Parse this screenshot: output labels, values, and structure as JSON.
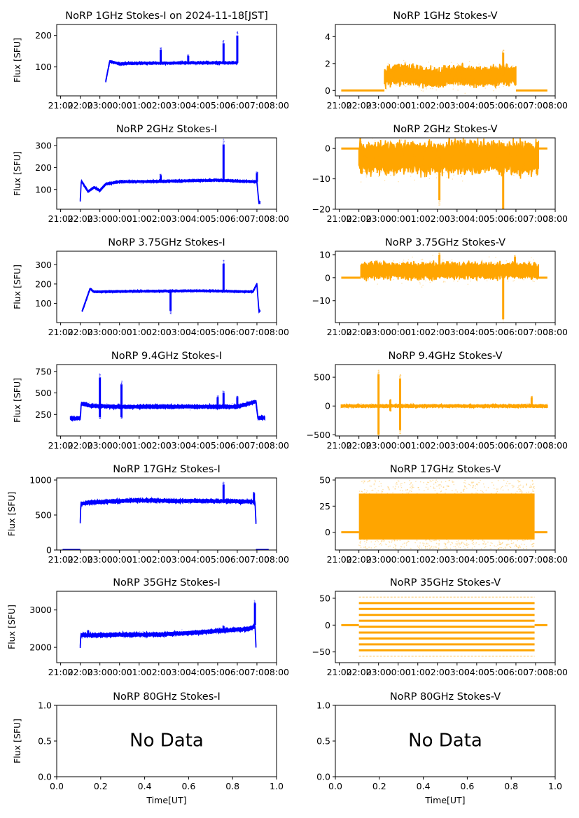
{
  "figure": {
    "date_title_suffix": " on 2024-11-18[JST]",
    "ylabel": "Flux [SFU]",
    "xlabel_bottom": "Time[UT]",
    "colors": {
      "stokes_i": "#0000ff",
      "stokes_v": "#ffa500",
      "axes": "#000000"
    }
  },
  "chart_data": [
    {
      "id": "i1",
      "type": "scatter",
      "title": "NoRP 1GHz Stokes-I on 2024-11-18[JST]",
      "ylabel": "Flux [SFU]",
      "color": "#0000ff",
      "stokes": "I",
      "xlim": [
        -3.2,
        8.0
      ],
      "ylim": [
        8,
        235
      ],
      "yticks": [
        100,
        200
      ],
      "xticklabels": [
        "21:00",
        "22:00",
        "23:00",
        "00:00",
        "01:00",
        "02:00",
        "03:00",
        "04:00",
        "05:00",
        "06:00",
        "07:00",
        "08:00"
      ],
      "baseline": [
        [
          -0.7,
          55
        ],
        [
          -0.5,
          118
        ],
        [
          0,
          110
        ],
        [
          1,
          112
        ],
        [
          2,
          112
        ],
        [
          4,
          113
        ],
        [
          6,
          113
        ],
        [
          6.0,
          115
        ]
      ],
      "spikes": [
        [
          2.1,
          155
        ],
        [
          3.5,
          135
        ],
        [
          5.3,
          175
        ],
        [
          6.0,
          200
        ]
      ],
      "noise": 2,
      "segment": [
        -0.7,
        6.0
      ]
    },
    {
      "id": "v1",
      "type": "scatter",
      "title": "NoRP 1GHz Stokes-V",
      "ylabel": "",
      "color": "#ffa500",
      "stokes": "V",
      "xlim": [
        -3.2,
        8.0
      ],
      "ylim": [
        -0.4,
        4.9
      ],
      "yticks": [
        0,
        2,
        4
      ],
      "xticklabels": [
        "21:00",
        "22:00",
        "23:00",
        "00:00",
        "01:00",
        "02:00",
        "03:00",
        "04:00",
        "05:00",
        "06:00",
        "07:00",
        "08:00"
      ],
      "baseline": [
        [
          -0.7,
          1.0
        ],
        [
          0,
          1.2
        ],
        [
          1,
          1.1
        ],
        [
          2,
          0.9
        ],
        [
          3,
          1.2
        ],
        [
          4,
          1.0
        ],
        [
          5,
          1.1
        ],
        [
          6,
          1.2
        ]
      ],
      "spikes": [
        [
          5.35,
          2.8
        ]
      ],
      "noise": 0.4,
      "segment": [
        -0.7,
        6.0
      ],
      "zero_segments": [
        [
          -2.9,
          -0.7
        ],
        [
          6.0,
          7.6
        ]
      ]
    },
    {
      "id": "i2",
      "type": "scatter",
      "title": "NoRP 2GHz Stokes-I",
      "ylabel": "Flux [SFU]",
      "color": "#0000ff",
      "stokes": "I",
      "xlim": [
        -3.2,
        8.0
      ],
      "ylim": [
        10,
        335
      ],
      "yticks": [
        100,
        200,
        300
      ],
      "xticklabels": [
        "21:00",
        "22:00",
        "23:00",
        "00:00",
        "01:00",
        "02:00",
        "03:00",
        "04:00",
        "05:00",
        "06:00",
        "07:00",
        "08:00"
      ],
      "baseline": [
        [
          -2,
          50
        ],
        [
          -1.95,
          140
        ],
        [
          -1.6,
          90
        ],
        [
          -1.3,
          110
        ],
        [
          -1.0,
          95
        ],
        [
          -0.7,
          125
        ],
        [
          0,
          135
        ],
        [
          2,
          137
        ],
        [
          5,
          142
        ],
        [
          7,
          135
        ],
        [
          7.1,
          40
        ]
      ],
      "spikes": [
        [
          2.1,
          165
        ],
        [
          5.3,
          305
        ],
        [
          7.0,
          175
        ]
      ],
      "noise": 3,
      "segment": [
        -2.0,
        7.15
      ]
    },
    {
      "id": "v2",
      "type": "scatter",
      "title": "NoRP 2GHz Stokes-V",
      "ylabel": "",
      "color": "#ffa500",
      "stokes": "V",
      "xlim": [
        -3.2,
        8.0
      ],
      "ylim": [
        -20,
        3.5
      ],
      "yticks": [
        0,
        -10,
        -20
      ],
      "xticklabels": [
        "21:00",
        "22:00",
        "23:00",
        "00:00",
        "01:00",
        "02:00",
        "03:00",
        "04:00",
        "05:00",
        "06:00",
        "07:00",
        "08:00"
      ],
      "baseline": [
        [
          -2,
          -3
        ],
        [
          7.1,
          -3
        ]
      ],
      "spikes": [
        [
          -1.6,
          -8
        ],
        [
          2.1,
          -17
        ],
        [
          5.35,
          -20
        ]
      ],
      "noise": 3,
      "segment": [
        -2.0,
        7.15
      ],
      "zero_segments": [
        [
          -2.9,
          -2.0
        ],
        [
          7.15,
          7.6
        ]
      ]
    },
    {
      "id": "i3",
      "type": "scatter",
      "title": "NoRP 3.75GHz Stokes-I",
      "ylabel": "Flux [SFU]",
      "color": "#0000ff",
      "stokes": "I",
      "xlim": [
        -3.2,
        8.0
      ],
      "ylim": [
        0,
        370
      ],
      "yticks": [
        100,
        200,
        300
      ],
      "xticklabels": [
        "21:00",
        "22:00",
        "23:00",
        "00:00",
        "01:00",
        "02:00",
        "03:00",
        "04:00",
        "05:00",
        "06:00",
        "07:00",
        "08:00"
      ],
      "baseline": [
        [
          -1.9,
          60
        ],
        [
          -1.5,
          175
        ],
        [
          -1.3,
          160
        ],
        [
          4,
          165
        ],
        [
          6.8,
          160
        ],
        [
          7.0,
          200
        ],
        [
          7.1,
          60
        ]
      ],
      "spikes": [
        [
          2.6,
          60
        ],
        [
          5.3,
          305
        ]
      ],
      "noise": 3,
      "segment": [
        -1.9,
        7.15
      ]
    },
    {
      "id": "v3",
      "type": "scatter",
      "title": "NoRP 3.75GHz Stokes-V",
      "ylabel": "",
      "color": "#ffa500",
      "stokes": "V",
      "xlim": [
        -3.2,
        8.0
      ],
      "ylim": [
        -19.5,
        11.5
      ],
      "yticks": [
        10,
        0,
        -10
      ],
      "xticklabels": [
        "21:00",
        "22:00",
        "23:00",
        "00:00",
        "01:00",
        "02:00",
        "03:00",
        "04:00",
        "05:00",
        "06:00",
        "07:00",
        "08:00"
      ],
      "baseline": [
        [
          -1.9,
          3
        ],
        [
          7.1,
          3
        ]
      ],
      "spikes": [
        [
          2.1,
          10
        ],
        [
          5.35,
          -18
        ],
        [
          5.95,
          9
        ]
      ],
      "noise": 2,
      "segment": [
        -1.9,
        7.15
      ],
      "zero_segments": [
        [
          -2.9,
          -1.9
        ],
        [
          7.15,
          7.6
        ]
      ]
    },
    {
      "id": "i4",
      "type": "scatter",
      "title": "NoRP 9.4GHz Stokes-I",
      "ylabel": "Flux [SFU]",
      "color": "#0000ff",
      "stokes": "I",
      "xlim": [
        -3.2,
        8.0
      ],
      "ylim": [
        0,
        830
      ],
      "yticks": [
        250,
        500,
        750
      ],
      "xticklabels": [
        "21:00",
        "22:00",
        "23:00",
        "00:00",
        "01:00",
        "02:00",
        "03:00",
        "04:00",
        "05:00",
        "06:00",
        "07:00",
        "08:00"
      ],
      "baseline": [
        [
          -2.5,
          205
        ],
        [
          -2.0,
          205
        ],
        [
          -1.95,
          380
        ],
        [
          -1.5,
          350
        ],
        [
          0,
          340
        ],
        [
          6,
          340
        ],
        [
          6.95,
          400
        ],
        [
          7.05,
          210
        ],
        [
          7.35,
          210
        ]
      ],
      "spikes": [
        [
          -1.0,
          680
        ],
        [
          -1.0,
          220
        ],
        [
          0.1,
          600
        ],
        [
          0.1,
          220
        ],
        [
          5.3,
          500
        ],
        [
          5.0,
          450
        ],
        [
          6.0,
          450
        ]
      ],
      "noise": 12,
      "segment": [
        -2.5,
        7.4
      ]
    },
    {
      "id": "v4",
      "type": "scatter",
      "title": "NoRP 9.4GHz Stokes-V",
      "ylabel": "",
      "color": "#ffa500",
      "stokes": "V",
      "xlim": [
        -3.2,
        8.0
      ],
      "ylim": [
        -520,
        720
      ],
      "yticks": [
        500,
        0,
        -500
      ],
      "xticklabels": [
        "21:00",
        "22:00",
        "23:00",
        "00:00",
        "01:00",
        "02:00",
        "03:00",
        "04:00",
        "05:00",
        "06:00",
        "07:00",
        "08:00"
      ],
      "baseline": [
        [
          -2.9,
          0
        ],
        [
          7.6,
          0
        ]
      ],
      "spikes": [
        [
          -1.0,
          550
        ],
        [
          -1.0,
          -500
        ],
        [
          0.1,
          480
        ],
        [
          0.1,
          -420
        ],
        [
          -0.4,
          100
        ],
        [
          -0.4,
          -80
        ],
        [
          6.8,
          150
        ]
      ],
      "noise": 15,
      "segment": [
        -2.9,
        7.6
      ]
    },
    {
      "id": "i5",
      "type": "scatter",
      "title": "NoRP 17GHz Stokes-I",
      "ylabel": "Flux [SFU]",
      "color": "#0000ff",
      "stokes": "I",
      "xlim": [
        -3.2,
        8.0
      ],
      "ylim": [
        0,
        1030
      ],
      "yticks": [
        0,
        500,
        1000
      ],
      "xticklabels": [
        "21:00",
        "22:00",
        "23:00",
        "00:00",
        "01:00",
        "02:00",
        "03:00",
        "04:00",
        "05:00",
        "06:00",
        "07:00",
        "08:00"
      ],
      "baseline": [
        [
          -2.0,
          400
        ],
        [
          -1.97,
          660
        ],
        [
          -1.5,
          680
        ],
        [
          0,
          700
        ],
        [
          1,
          710
        ],
        [
          3,
          700
        ],
        [
          5,
          700
        ],
        [
          6.9,
          690
        ],
        [
          6.95,
          400
        ]
      ],
      "spikes": [
        [
          5.3,
          935
        ],
        [
          6.85,
          810
        ]
      ],
      "noise": 15,
      "segment": [
        -2.0,
        6.95
      ],
      "zero_segments": [
        [
          -2.9,
          -2.0
        ],
        [
          6.95,
          7.6
        ]
      ]
    },
    {
      "id": "v5",
      "type": "scatter",
      "title": "NoRP 17GHz Stokes-V",
      "ylabel": "",
      "color": "#ffa500",
      "stokes": "V",
      "xlim": [
        -3.2,
        8.0
      ],
      "ylim": [
        -17,
        52
      ],
      "yticks": [
        50,
        25,
        0
      ],
      "xticklabels": [
        "21:00",
        "22:00",
        "23:00",
        "00:00",
        "01:00",
        "02:00",
        "03:00",
        "04:00",
        "05:00",
        "06:00",
        "07:00",
        "08:00"
      ],
      "band": [
        -7,
        37
      ],
      "noise": 10,
      "segment": [
        -2.0,
        6.95
      ],
      "zero_segments": [
        [
          -2.9,
          -2.0
        ],
        [
          6.95,
          7.6
        ]
      ]
    },
    {
      "id": "i6",
      "type": "scatter",
      "title": "NoRP 35GHz Stokes-I",
      "ylabel": "Flux [SFU]",
      "color": "#0000ff",
      "stokes": "I",
      "xlim": [
        -3.2,
        8.0
      ],
      "ylim": [
        1590,
        3500
      ],
      "yticks": [
        2000,
        3000
      ],
      "xticklabels": [
        "21:00",
        "22:00",
        "23:00",
        "00:00",
        "01:00",
        "02:00",
        "03:00",
        "04:00",
        "05:00",
        "06:00",
        "07:00",
        "08:00"
      ],
      "baseline": [
        [
          -2.0,
          2020
        ],
        [
          -1.97,
          2330
        ],
        [
          -1.5,
          2320
        ],
        [
          0,
          2340
        ],
        [
          2,
          2340
        ],
        [
          4,
          2400
        ],
        [
          6.7,
          2500
        ],
        [
          6.9,
          2600
        ],
        [
          6.95,
          2020
        ]
      ],
      "spikes": [
        [
          6.9,
          3180
        ],
        [
          5.3,
          2560
        ],
        [
          -1.6,
          2440
        ]
      ],
      "noise": 30,
      "segment": [
        -2.0,
        6.95
      ]
    },
    {
      "id": "v6",
      "type": "scatter",
      "title": "NoRP 35GHz Stokes-V",
      "ylabel": "",
      "color": "#ffa500",
      "stokes": "V",
      "xlim": [
        -3.2,
        8.0
      ],
      "ylim": [
        -70,
        63
      ],
      "yticks": [
        50,
        0,
        -50
      ],
      "xticklabels": [
        "21:00",
        "22:00",
        "23:00",
        "00:00",
        "01:00",
        "02:00",
        "03:00",
        "04:00",
        "05:00",
        "06:00",
        "07:00",
        "08:00"
      ],
      "levels": [
        52,
        41,
        30,
        19,
        8,
        -3,
        -14,
        -25,
        -36,
        -47,
        -58
      ],
      "faint_levels": [
        52,
        -58
      ],
      "segment": [
        -2.0,
        6.95
      ],
      "zero_segments": [
        [
          -2.9,
          -2.0
        ],
        [
          6.95,
          7.6
        ]
      ]
    },
    {
      "id": "i7",
      "type": "empty",
      "title": "NoRP 80GHz Stokes-I",
      "ylabel": "Flux [SFU]",
      "xlabel": "Time[UT]",
      "color": "#0000ff",
      "stokes": "I",
      "xlim": [
        0,
        1
      ],
      "ylim": [
        0,
        1
      ],
      "yticks": [
        0.0,
        0.5,
        1.0
      ],
      "xticks": [
        0.0,
        0.2,
        0.4,
        0.6,
        0.8,
        1.0
      ],
      "yticklabels": [
        "0.0",
        "0.5",
        "1.0"
      ],
      "xticklabels": [
        "0.0",
        "0.2",
        "0.4",
        "0.6",
        "0.8",
        "1.0"
      ],
      "annotation": "No Data"
    },
    {
      "id": "v7",
      "type": "empty",
      "title": "NoRP 80GHz Stokes-V",
      "ylabel": "",
      "xlabel": "Time[UT]",
      "color": "#ffa500",
      "stokes": "V",
      "xlim": [
        0,
        1
      ],
      "ylim": [
        0,
        1
      ],
      "yticks": [
        0.0,
        0.5,
        1.0
      ],
      "xticks": [
        0.0,
        0.2,
        0.4,
        0.6,
        0.8,
        1.0
      ],
      "yticklabels": [
        "0.0",
        "0.5",
        "1.0"
      ],
      "xticklabels": [
        "0.0",
        "0.2",
        "0.4",
        "0.6",
        "0.8",
        "1.0"
      ],
      "annotation": "No Data"
    }
  ]
}
